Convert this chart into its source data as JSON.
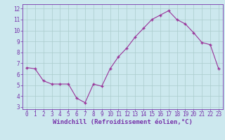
{
  "x": [
    0,
    1,
    2,
    3,
    4,
    5,
    6,
    7,
    8,
    9,
    10,
    11,
    12,
    13,
    14,
    15,
    16,
    17,
    18,
    19,
    20,
    21,
    22,
    23
  ],
  "y": [
    6.6,
    6.5,
    5.4,
    5.1,
    5.1,
    5.1,
    3.8,
    3.4,
    5.1,
    4.9,
    6.5,
    7.6,
    8.4,
    9.4,
    10.2,
    11.0,
    11.4,
    11.8,
    11.0,
    10.6,
    9.8,
    8.9,
    8.7,
    6.5
  ],
  "line_color": "#993399",
  "marker": "+",
  "bg_color": "#cce8ee",
  "grid_color": "#aacccc",
  "xlabel": "Windchill (Refroidissement éolien,°C)",
  "xlim": [
    -0.5,
    23.5
  ],
  "ylim": [
    2.8,
    12.4
  ],
  "yticks": [
    3,
    4,
    5,
    6,
    7,
    8,
    9,
    10,
    11,
    12
  ],
  "xticks": [
    0,
    1,
    2,
    3,
    4,
    5,
    6,
    7,
    8,
    9,
    10,
    11,
    12,
    13,
    14,
    15,
    16,
    17,
    18,
    19,
    20,
    21,
    22,
    23
  ],
  "tick_color": "#7733aa",
  "tick_label_fontsize": 5.5,
  "xlabel_fontsize": 6.5,
  "spine_color": "#7733aa",
  "label_color": "#7733aa"
}
